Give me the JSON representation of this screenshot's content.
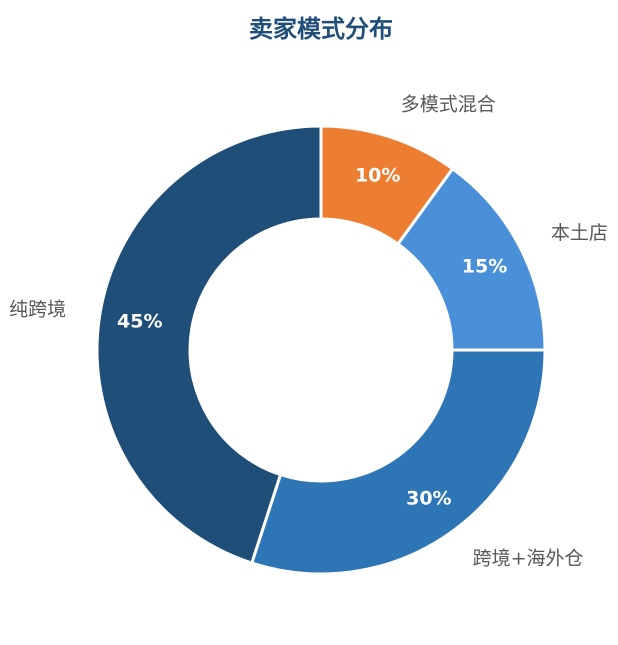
{
  "chart_data": {
    "type": "pie",
    "title": "卖家模式分布",
    "categories": [
      "多模式混合",
      "本土店",
      "跨境+海外仓",
      "纯跨境"
    ],
    "values": [
      10,
      15,
      30,
      45
    ],
    "value_labels": [
      "10%",
      "15%",
      "30%",
      "45%"
    ],
    "colors": [
      "#ed7d31",
      "#4a90d9",
      "#2e75b6",
      "#1f4e79"
    ],
    "donut": true,
    "start_angle_deg": 0,
    "direction": "clockwise",
    "legend": "none"
  }
}
